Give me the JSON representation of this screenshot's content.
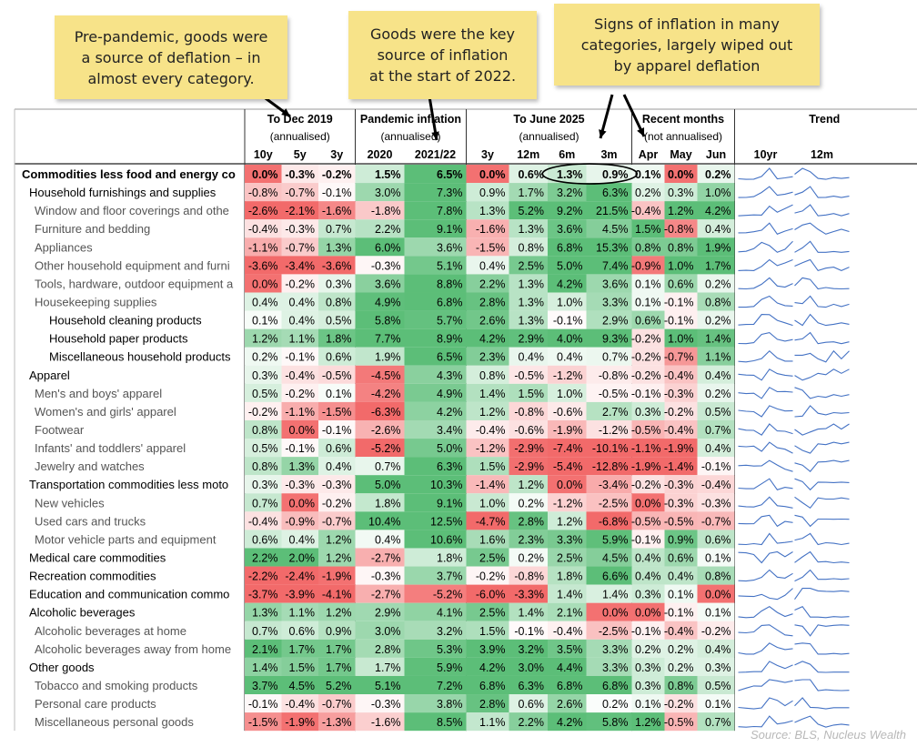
{
  "annotations": [
    "Pre-pandemic, goods were\na source of deflation – in\nalmost every category.",
    "Goods were the key\nsource of inflation\nat the start of 2022.",
    "Signs of inflation in many\ncategories, largely wiped out\nby apparel deflation"
  ],
  "source": "Source: BLS, Nucleus Wealth",
  "chart_data": {
    "type": "heatmap",
    "groups": [
      {
        "title": "To Dec 2019",
        "subtitle": "(annualised)"
      },
      {
        "title": "Pandemic inflation",
        "subtitle": "(annualised)"
      },
      {
        "title": "To June 2025",
        "subtitle": "(annualised)"
      },
      {
        "title": "Recent months",
        "subtitle": "(not annualised)"
      },
      {
        "title": "Trend",
        "subtitle": ""
      }
    ],
    "columns": [
      "10y",
      "5y",
      "3y",
      "2020",
      "2021/22",
      "3y",
      "12m",
      "6m",
      "3m",
      "Apr",
      "May",
      "Jun",
      "10yr",
      "12m"
    ],
    "highlighted": [
      "1.3%",
      "0.9%"
    ],
    "rows": [
      {
        "label": "Commodities less food and energy co",
        "level": 0,
        "bold": true,
        "values": [
          "0.0%",
          "-0.3%",
          "-0.2%",
          "1.5%",
          "6.5%",
          "0.0%",
          "0.6%",
          "1.3%",
          "0.9%",
          "0.1%",
          "0.0%",
          "0.2%"
        ]
      },
      {
        "label": "Household furnishings and supplies",
        "level": 1,
        "bold": false,
        "values": [
          "-0.8%",
          "-0.7%",
          "-0.1%",
          "3.0%",
          "7.3%",
          "0.9%",
          "1.7%",
          "3.2%",
          "6.3%",
          "0.2%",
          "0.3%",
          "1.0%"
        ]
      },
      {
        "label": "Window and floor coverings and othe",
        "level": 2,
        "bold": false,
        "values": [
          "-2.6%",
          "-2.1%",
          "-1.6%",
          "-1.8%",
          "7.8%",
          "1.3%",
          "5.2%",
          "9.2%",
          "21.5%",
          "-0.4%",
          "1.2%",
          "4.2%"
        ]
      },
      {
        "label": "Furniture and bedding",
        "level": 2,
        "bold": false,
        "values": [
          "-0.4%",
          "-0.3%",
          "0.7%",
          "2.2%",
          "9.1%",
          "-1.6%",
          "1.3%",
          "3.6%",
          "4.5%",
          "1.5%",
          "-0.8%",
          "0.4%"
        ]
      },
      {
        "label": "Appliances",
        "level": 2,
        "bold": false,
        "values": [
          "-1.1%",
          "-0.7%",
          "1.3%",
          "6.0%",
          "3.6%",
          "-1.5%",
          "0.8%",
          "6.8%",
          "15.3%",
          "0.8%",
          "0.8%",
          "1.9%"
        ]
      },
      {
        "label": "Other household equipment and furni",
        "level": 2,
        "bold": false,
        "values": [
          "-3.6%",
          "-3.4%",
          "-3.6%",
          "-0.3%",
          "5.1%",
          "0.4%",
          "2.5%",
          "5.0%",
          "7.4%",
          "-0.9%",
          "1.0%",
          "1.7%"
        ]
      },
      {
        "label": "Tools, hardware, outdoor equipment a",
        "level": 2,
        "bold": false,
        "values": [
          "0.0%",
          "-0.2%",
          "0.3%",
          "3.6%",
          "8.8%",
          "2.2%",
          "1.3%",
          "4.2%",
          "3.6%",
          "0.1%",
          "0.6%",
          "0.2%"
        ]
      },
      {
        "label": "Housekeeping supplies",
        "level": 2,
        "bold": false,
        "values": [
          "0.4%",
          "0.4%",
          "0.8%",
          "4.9%",
          "6.8%",
          "2.8%",
          "1.3%",
          "1.0%",
          "3.3%",
          "0.1%",
          "-0.1%",
          "0.8%"
        ]
      },
      {
        "label": "Household cleaning products",
        "level": 3,
        "bold": false,
        "values": [
          "0.1%",
          "0.4%",
          "0.5%",
          "5.8%",
          "5.7%",
          "2.6%",
          "1.3%",
          "-0.1%",
          "2.9%",
          "0.6%",
          "-0.1%",
          "0.2%"
        ]
      },
      {
        "label": "Household paper products",
        "level": 3,
        "bold": false,
        "values": [
          "1.2%",
          "1.1%",
          "1.8%",
          "7.7%",
          "8.9%",
          "4.2%",
          "2.9%",
          "4.0%",
          "9.3%",
          "-0.2%",
          "1.0%",
          "1.4%"
        ]
      },
      {
        "label": "Miscellaneous household products",
        "level": 3,
        "bold": false,
        "values": [
          "0.2%",
          "-0.1%",
          "0.6%",
          "1.9%",
          "6.5%",
          "2.3%",
          "0.4%",
          "0.4%",
          "0.7%",
          "-0.2%",
          "-0.7%",
          "1.1%"
        ]
      },
      {
        "label": "Apparel",
        "level": 1,
        "bold": false,
        "values": [
          "0.3%",
          "-0.4%",
          "-0.5%",
          "-4.5%",
          "4.3%",
          "0.8%",
          "-0.5%",
          "-1.2%",
          "-0.8%",
          "-0.2%",
          "-0.4%",
          "0.4%"
        ]
      },
      {
        "label": "Men's and boys' apparel",
        "level": 2,
        "bold": false,
        "values": [
          "0.5%",
          "-0.2%",
          "0.1%",
          "-4.2%",
          "4.9%",
          "1.4%",
          "1.5%",
          "1.0%",
          "-0.5%",
          "-0.1%",
          "-0.3%",
          "0.2%"
        ]
      },
      {
        "label": "Women's and girls' apparel",
        "level": 2,
        "bold": false,
        "values": [
          "-0.2%",
          "-1.1%",
          "-1.5%",
          "-6.3%",
          "4.2%",
          "1.2%",
          "-0.8%",
          "-0.6%",
          "2.7%",
          "0.3%",
          "-0.2%",
          "0.5%"
        ]
      },
      {
        "label": "Footwear",
        "level": 2,
        "bold": false,
        "values": [
          "0.8%",
          "0.0%",
          "-0.1%",
          "-2.6%",
          "3.4%",
          "-0.4%",
          "-0.6%",
          "-1.9%",
          "-1.2%",
          "-0.5%",
          "-0.4%",
          "0.7%"
        ]
      },
      {
        "label": "Infants' and toddlers' apparel",
        "level": 2,
        "bold": false,
        "values": [
          "0.5%",
          "-0.1%",
          "0.6%",
          "-5.2%",
          "5.0%",
          "-1.2%",
          "-2.9%",
          "-7.4%",
          "-10.1%",
          "-1.1%",
          "-1.9%",
          "0.4%"
        ]
      },
      {
        "label": "Jewelry and watches",
        "level": 2,
        "bold": false,
        "values": [
          "0.8%",
          "1.3%",
          "0.4%",
          "0.7%",
          "6.3%",
          "1.5%",
          "-2.9%",
          "-5.4%",
          "-12.8%",
          "-1.9%",
          "-1.4%",
          "-0.1%"
        ]
      },
      {
        "label": "Transportation commodities less moto",
        "level": 1,
        "bold": false,
        "values": [
          "0.3%",
          "-0.3%",
          "-0.3%",
          "5.0%",
          "10.3%",
          "-1.4%",
          "1.2%",
          "0.0%",
          "-3.4%",
          "-0.2%",
          "-0.3%",
          "-0.4%"
        ]
      },
      {
        "label": "New vehicles",
        "level": 2,
        "bold": false,
        "values": [
          "0.7%",
          "0.0%",
          "-0.2%",
          "1.8%",
          "9.1%",
          "1.0%",
          "0.2%",
          "-1.2%",
          "-2.5%",
          "0.0%",
          "-0.3%",
          "-0.3%"
        ]
      },
      {
        "label": "Used cars and trucks",
        "level": 2,
        "bold": false,
        "values": [
          "-0.4%",
          "-0.9%",
          "-0.7%",
          "10.4%",
          "12.5%",
          "-4.7%",
          "2.8%",
          "1.2%",
          "-6.8%",
          "-0.5%",
          "-0.5%",
          "-0.7%"
        ]
      },
      {
        "label": "Motor vehicle parts and equipment",
        "level": 2,
        "bold": false,
        "values": [
          "0.6%",
          "0.4%",
          "1.2%",
          "0.4%",
          "10.6%",
          "1.6%",
          "2.3%",
          "3.3%",
          "5.9%",
          "-0.1%",
          "0.9%",
          "0.6%"
        ]
      },
      {
        "label": "Medical care commodities",
        "level": 1,
        "bold": false,
        "values": [
          "2.2%",
          "2.0%",
          "1.2%",
          "-2.7%",
          "1.8%",
          "2.5%",
          "0.2%",
          "2.5%",
          "4.5%",
          "0.4%",
          "0.6%",
          "0.1%"
        ]
      },
      {
        "label": "Recreation commodities",
        "level": 1,
        "bold": false,
        "values": [
          "-2.2%",
          "-2.4%",
          "-1.9%",
          "-0.3%",
          "3.7%",
          "-0.2%",
          "-0.8%",
          "1.8%",
          "6.6%",
          "0.4%",
          "0.4%",
          "0.8%"
        ]
      },
      {
        "label": "Education and communication commo",
        "level": 1,
        "bold": false,
        "values": [
          "-3.7%",
          "-3.9%",
          "-4.1%",
          "-2.7%",
          "-5.2%",
          "-6.0%",
          "-3.3%",
          "1.4%",
          "1.4%",
          "0.3%",
          "0.1%",
          "0.0%"
        ]
      },
      {
        "label": "Alcoholic beverages",
        "level": 1,
        "bold": false,
        "values": [
          "1.3%",
          "1.1%",
          "1.2%",
          "2.9%",
          "4.1%",
          "2.5%",
          "1.4%",
          "2.1%",
          "0.0%",
          "0.0%",
          "-0.1%",
          "0.1%"
        ]
      },
      {
        "label": "Alcoholic beverages at home",
        "level": 2,
        "bold": false,
        "values": [
          "0.7%",
          "0.6%",
          "0.9%",
          "3.0%",
          "3.2%",
          "1.5%",
          "-0.1%",
          "-0.4%",
          "-2.5%",
          "-0.1%",
          "-0.4%",
          "-0.2%"
        ]
      },
      {
        "label": "Alcoholic beverages away from home",
        "level": 2,
        "bold": false,
        "values": [
          "2.1%",
          "1.7%",
          "1.7%",
          "2.8%",
          "5.3%",
          "3.9%",
          "3.2%",
          "3.5%",
          "3.3%",
          "0.2%",
          "0.2%",
          "0.4%"
        ]
      },
      {
        "label": "Other goods",
        "level": 1,
        "bold": false,
        "values": [
          "1.4%",
          "1.5%",
          "1.7%",
          "1.7%",
          "5.9%",
          "4.2%",
          "3.0%",
          "4.4%",
          "3.3%",
          "0.3%",
          "0.2%",
          "0.3%"
        ]
      },
      {
        "label": "Tobacco and smoking products",
        "level": 2,
        "bold": false,
        "values": [
          "3.7%",
          "4.5%",
          "5.2%",
          "5.1%",
          "7.2%",
          "6.8%",
          "6.3%",
          "6.8%",
          "6.8%",
          "0.3%",
          "0.8%",
          "0.5%"
        ]
      },
      {
        "label": "Personal care products",
        "level": 2,
        "bold": false,
        "values": [
          "-0.1%",
          "-0.4%",
          "-0.7%",
          "-0.3%",
          "3.8%",
          "2.8%",
          "0.6%",
          "2.6%",
          "0.2%",
          "0.1%",
          "-0.2%",
          "0.1%"
        ]
      },
      {
        "label": "Miscellaneous personal goods",
        "level": 2,
        "bold": false,
        "values": [
          "-1.5%",
          "-1.9%",
          "-1.3%",
          "-1.6%",
          "8.5%",
          "1.1%",
          "2.2%",
          "4.2%",
          "5.8%",
          "1.2%",
          "-0.5%",
          "0.7%"
        ]
      }
    ]
  }
}
